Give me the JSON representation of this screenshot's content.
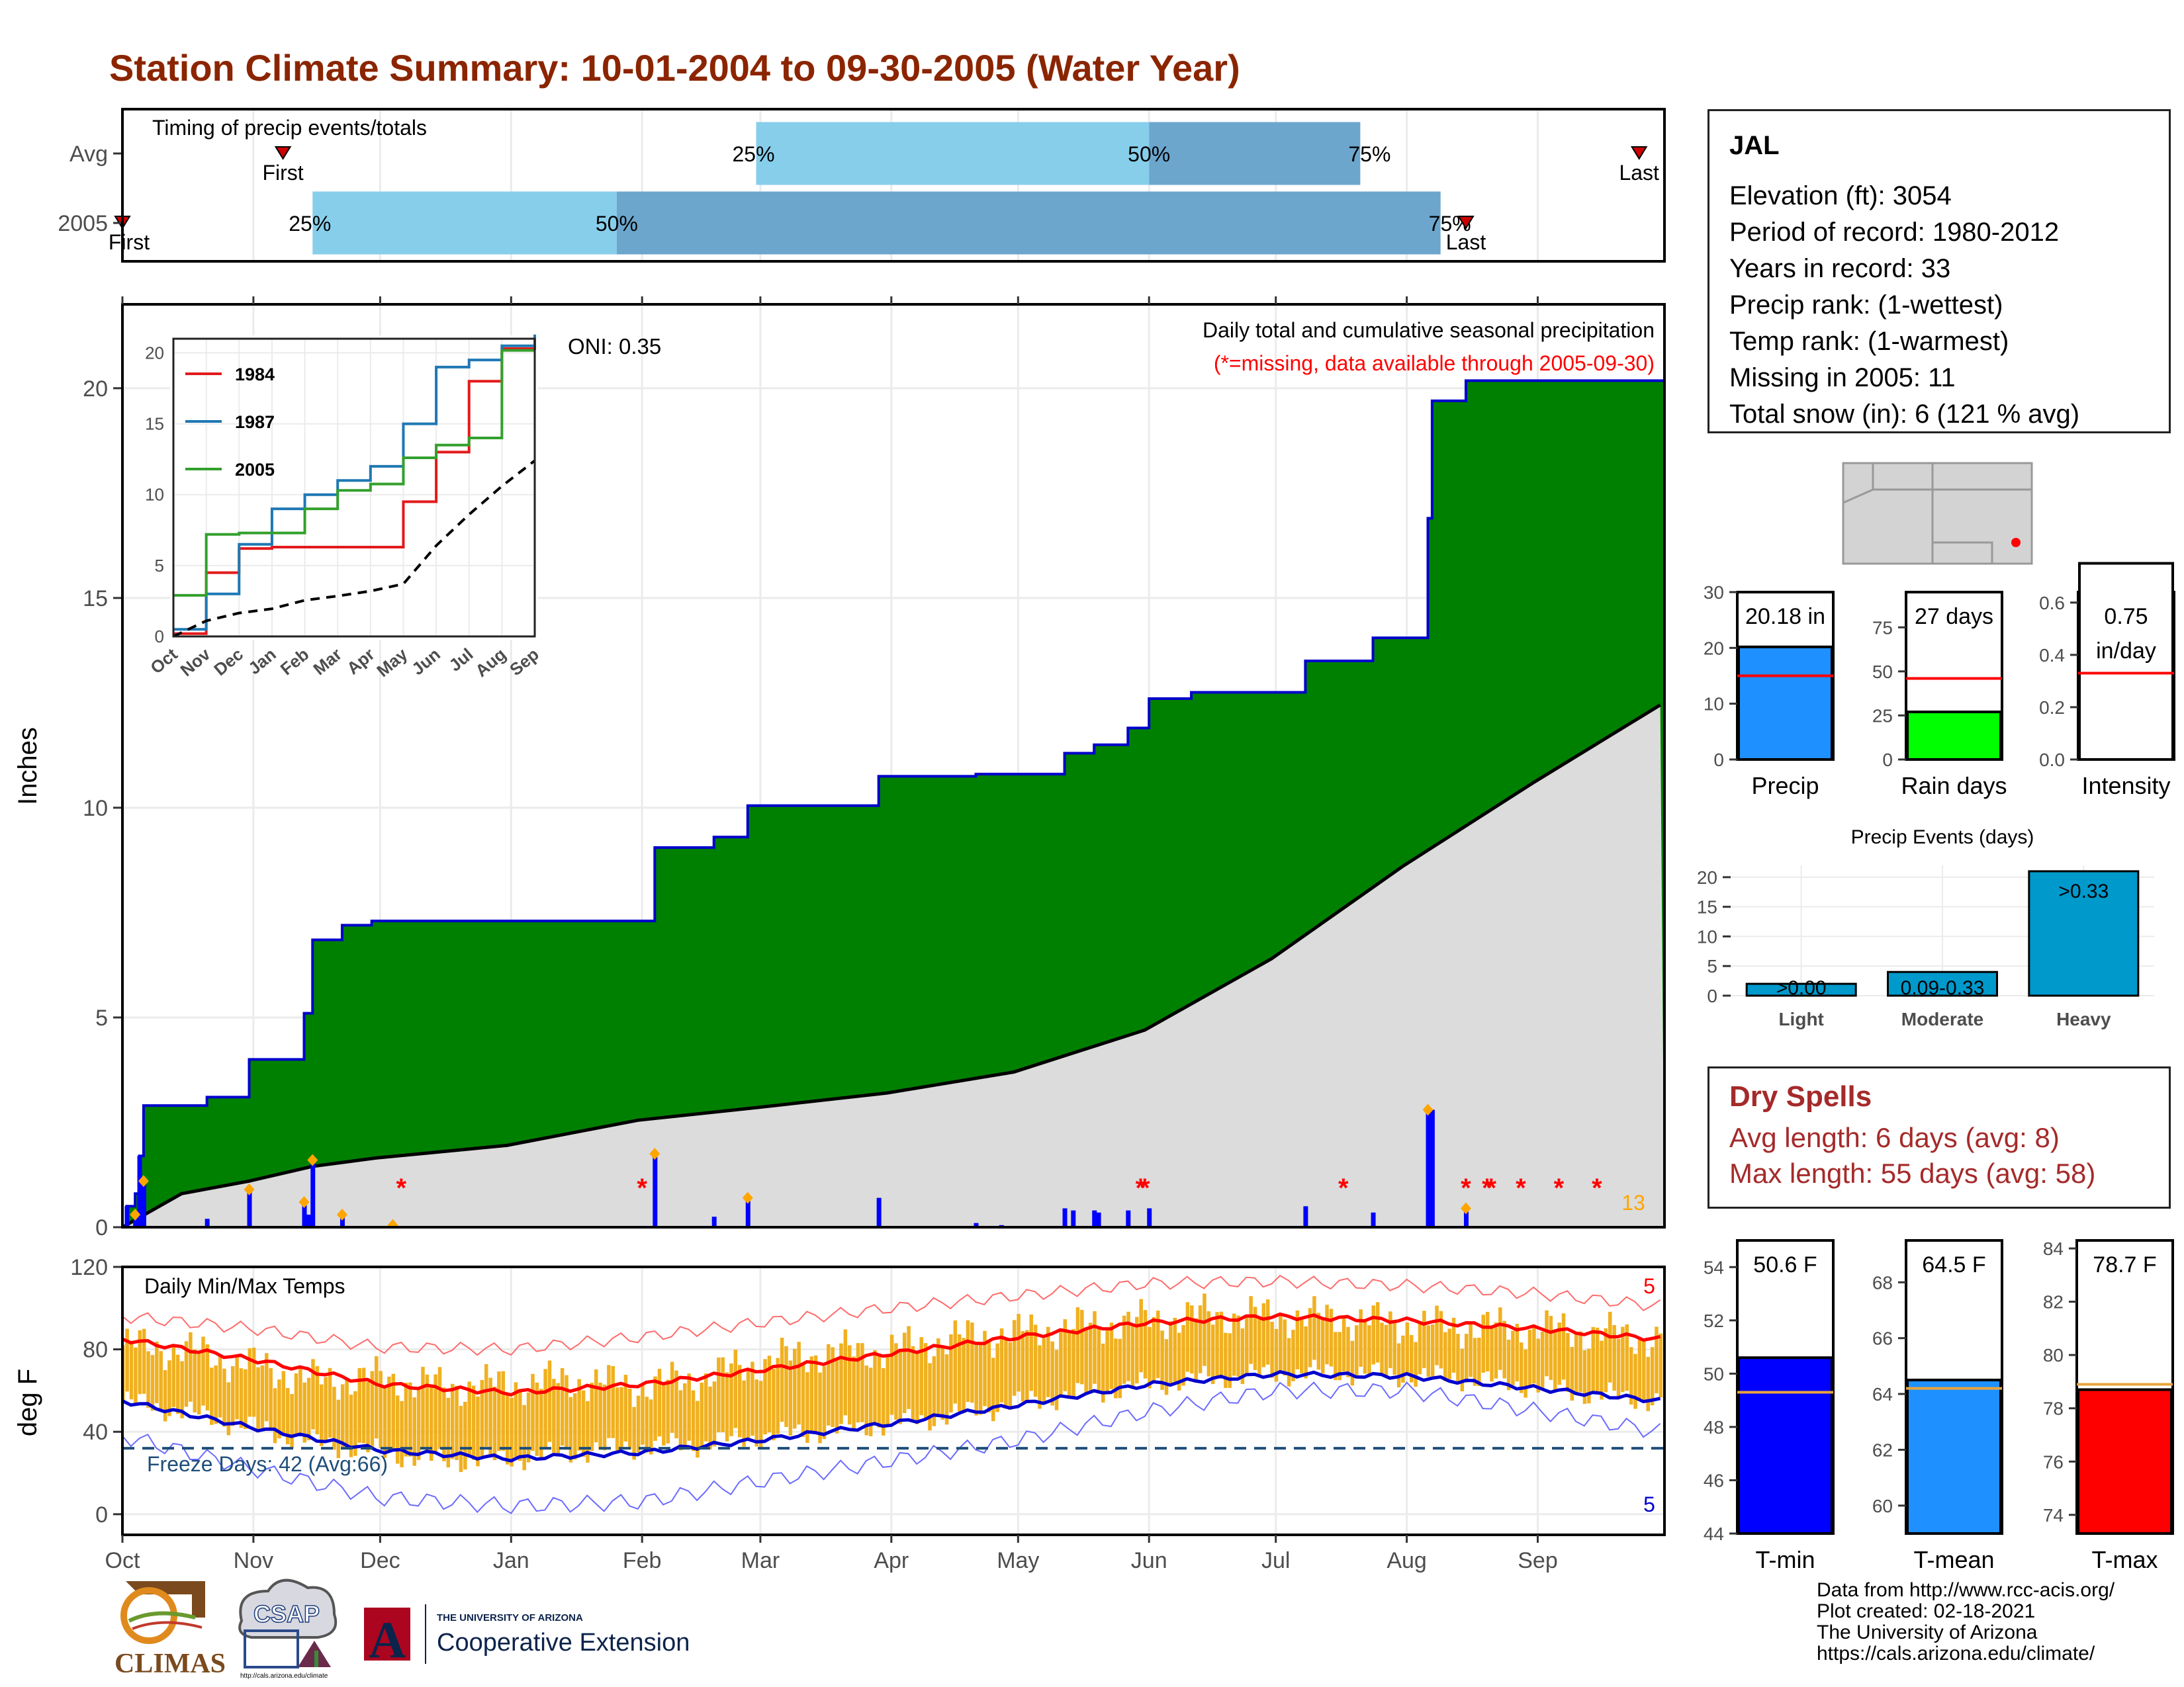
{
  "title": "Station Climate Summary: 10-01-2004 to 09-30-2005 (Water Year)",
  "station": {
    "name": "JAL",
    "rows": [
      "Elevation (ft): 3054",
      "Period of record: 1980-2012",
      "Years in record: 33",
      "Precip rank:  (1-wettest)",
      "Temp rank:  (1-warmest)",
      "Missing in 2005: 11",
      "Total snow (in): 6 (121 % avg)"
    ]
  },
  "dry_spells": {
    "header": "Dry Spells",
    "rows": [
      "Avg length: 6 days (avg: 8)",
      "Max length: 55 days (avg: 58)"
    ]
  },
  "credits": [
    "Data from http://www.rcc-acis.org/",
    "Plot created: 02-18-2021",
    "The University of Arizona",
    "https://cals.arizona.edu/climate/"
  ],
  "logos": {
    "climas": "CLIMAS",
    "csap": "CSAP",
    "csap_url": "http://cals.arizona.edu/climate",
    "ua_small": "THE UNIVERSITY OF ARIZONA",
    "ua_big": "Cooperative Extension",
    "ua_letter": "A"
  },
  "colors": {
    "title": "#8b2500",
    "cumulative_2005": "#008000",
    "cumulative_outline": "#0000cc",
    "average": "#dcdcdc",
    "daily_bar": "#0000ff",
    "timing_light": "#87ceeb",
    "timing_dark": "#6ca6cd",
    "temp_range": "#f0b020",
    "tmax": "#ff0000",
    "tmin": "#0000cd",
    "tmean_bar": "#1e90ff",
    "rain_days_bar": "#00ff00"
  },
  "months": [
    "Oct",
    "Nov",
    "Dec",
    "Jan",
    "Feb",
    "Mar",
    "Apr",
    "May",
    "Jun",
    "Jul",
    "Aug",
    "Sep"
  ],
  "chart_data": [
    {
      "type": "bar",
      "id": "timing",
      "title": "Timing of precip events/totals",
      "rows": [
        {
          "name": "Avg",
          "first_label": "First",
          "last_label": "Last",
          "first": "2004-11-08",
          "p25": "2005-02-28",
          "p50": "2005-06-01",
          "p75": "2005-07-21",
          "last": "2005-09-25"
        },
        {
          "name": "2005",
          "first_label": "First",
          "last_label": "Last",
          "first": "2004-10-01",
          "p25": "2004-11-15",
          "p50": "2005-01-26",
          "p75": "2005-08-09",
          "last": "2005-08-15"
        }
      ],
      "percent_labels": [
        "25%",
        "50%",
        "75%"
      ]
    },
    {
      "type": "area",
      "id": "precip",
      "ylabel": "Inches",
      "ylim": [
        0,
        22
      ],
      "yticks": [
        0,
        5,
        10,
        15,
        20
      ],
      "annotation_right": "Daily total and cumulative seasonal precipitation",
      "annotation_missing": "(*=missing, data available through 2005-09-30)",
      "oni": "ONI: 0.35",
      "count_label": "13",
      "cumulative_2005": [
        {
          "x": "2004-10-01",
          "y": 0.0
        },
        {
          "x": "2004-10-02",
          "y": 0.5
        },
        {
          "x": "2004-10-04",
          "y": 0.8
        },
        {
          "x": "2004-10-05",
          "y": 1.7
        },
        {
          "x": "2004-10-06",
          "y": 2.9
        },
        {
          "x": "2004-10-21",
          "y": 3.1
        },
        {
          "x": "2004-10-31",
          "y": 4.0
        },
        {
          "x": "2004-11-13",
          "y": 5.1
        },
        {
          "x": "2004-11-15",
          "y": 6.85
        },
        {
          "x": "2004-11-22",
          "y": 7.2
        },
        {
          "x": "2004-11-29",
          "y": 7.3
        },
        {
          "x": "2005-02-04",
          "y": 9.05
        },
        {
          "x": "2005-02-18",
          "y": 9.3
        },
        {
          "x": "2005-02-26",
          "y": 10.05
        },
        {
          "x": "2005-03-29",
          "y": 10.75
        },
        {
          "x": "2005-04-21",
          "y": 10.8
        },
        {
          "x": "2005-05-12",
          "y": 11.3
        },
        {
          "x": "2005-05-19",
          "y": 11.5
        },
        {
          "x": "2005-05-27",
          "y": 11.9
        },
        {
          "x": "2005-06-01",
          "y": 12.6
        },
        {
          "x": "2005-06-11",
          "y": 12.75
        },
        {
          "x": "2005-07-08",
          "y": 13.5
        },
        {
          "x": "2005-07-24",
          "y": 14.05
        },
        {
          "x": "2005-08-06",
          "y": 16.9
        },
        {
          "x": "2005-08-07",
          "y": 19.7
        },
        {
          "x": "2005-08-15",
          "y": 20.18
        },
        {
          "x": "2005-09-30",
          "y": 20.18
        }
      ],
      "average_cumulative": [
        {
          "x": "2004-10-01",
          "y": 0.0
        },
        {
          "x": "2004-10-15",
          "y": 0.8
        },
        {
          "x": "2004-10-31",
          "y": 1.1
        },
        {
          "x": "2004-11-15",
          "y": 1.45
        },
        {
          "x": "2004-11-30",
          "y": 1.65
        },
        {
          "x": "2004-12-31",
          "y": 1.95
        },
        {
          "x": "2005-01-31",
          "y": 2.55
        },
        {
          "x": "2005-02-28",
          "y": 2.85
        },
        {
          "x": "2005-03-31",
          "y": 3.2
        },
        {
          "x": "2005-04-30",
          "y": 3.7
        },
        {
          "x": "2005-05-31",
          "y": 4.7
        },
        {
          "x": "2005-06-30",
          "y": 6.4
        },
        {
          "x": "2005-07-31",
          "y": 8.6
        },
        {
          "x": "2005-08-31",
          "y": 10.6
        },
        {
          "x": "2005-09-30",
          "y": 12.45
        }
      ],
      "daily_bars": [
        {
          "x": "2004-10-02",
          "y": 0.5
        },
        {
          "x": "2004-10-04",
          "y": 0.3
        },
        {
          "x": "2004-10-05",
          "y": 1.7
        },
        {
          "x": "2004-10-06",
          "y": 1.1
        },
        {
          "x": "2004-10-21",
          "y": 0.2
        },
        {
          "x": "2004-10-31",
          "y": 0.9
        },
        {
          "x": "2004-11-13",
          "y": 0.6
        },
        {
          "x": "2004-11-14",
          "y": 0.3
        },
        {
          "x": "2004-11-15",
          "y": 1.6
        },
        {
          "x": "2004-11-22",
          "y": 0.3
        },
        {
          "x": "2005-02-04",
          "y": 1.75
        },
        {
          "x": "2005-02-18",
          "y": 0.25
        },
        {
          "x": "2005-02-26",
          "y": 0.7
        },
        {
          "x": "2005-03-29",
          "y": 0.7
        },
        {
          "x": "2005-04-21",
          "y": 0.1
        },
        {
          "x": "2005-04-27",
          "y": 0.05
        },
        {
          "x": "2005-05-12",
          "y": 0.45
        },
        {
          "x": "2005-05-14",
          "y": 0.4
        },
        {
          "x": "2005-05-19",
          "y": 0.4
        },
        {
          "x": "2005-05-20",
          "y": 0.35
        },
        {
          "x": "2005-05-27",
          "y": 0.4
        },
        {
          "x": "2005-06-01",
          "y": 0.45
        },
        {
          "x": "2005-07-08",
          "y": 0.5
        },
        {
          "x": "2005-07-24",
          "y": 0.35
        },
        {
          "x": "2005-08-06",
          "y": 2.8
        },
        {
          "x": "2005-08-07",
          "y": 2.8
        },
        {
          "x": "2005-08-15",
          "y": 0.45
        }
      ],
      "snow_days": [
        "2004-10-04",
        "2004-10-06",
        "2004-10-31",
        "2004-11-13",
        "2004-11-15",
        "2004-11-22",
        "2004-12-04",
        "2005-02-04",
        "2005-02-26",
        "2005-08-06",
        "2005-08-15"
      ],
      "missing_days": [
        "2004-12-06",
        "2005-02-01",
        "2005-05-30",
        "2005-05-31",
        "2005-07-17",
        "2005-08-15",
        "2005-08-20",
        "2005-08-21",
        "2005-08-28",
        "2005-09-06",
        "2005-09-15"
      ]
    },
    {
      "type": "line",
      "id": "inset_cumulative",
      "xlabels": [
        "Oct",
        "Nov",
        "Dec",
        "Jan",
        "Feb",
        "Mar",
        "Apr",
        "May",
        "Jun",
        "Jul",
        "Aug",
        "Sep"
      ],
      "ylim": [
        0,
        21
      ],
      "yticks": [
        0,
        5,
        10,
        15,
        20
      ],
      "series": [
        {
          "name": "1984",
          "values": [
            0.2,
            4.5,
            6.2,
            6.3,
            6.3,
            6.3,
            6.3,
            9.5,
            13.0,
            18.0,
            20.3,
            20.6
          ]
        },
        {
          "name": "1987",
          "values": [
            0.5,
            3.0,
            6.5,
            9.0,
            10.0,
            11.0,
            12.0,
            15.0,
            19.0,
            19.5,
            20.5,
            21.3
          ]
        },
        {
          "name": "2005",
          "values": [
            2.9,
            7.2,
            7.3,
            7.3,
            9.0,
            10.3,
            10.75,
            12.6,
            13.5,
            14.0,
            20.18,
            20.18
          ]
        },
        {
          "name": "",
          "values": [
            0,
            1.1,
            1.65,
            1.95,
            2.55,
            2.85,
            3.2,
            3.7,
            6.4,
            8.6,
            10.6,
            12.4
          ]
        }
      ]
    },
    {
      "type": "line",
      "id": "temps",
      "title": "Daily Min/Max Temps",
      "ylabel": "deg F",
      "ylim": [
        -10,
        120
      ],
      "yticks": [
        0,
        40,
        80,
        120
      ],
      "freeze_label": "Freeze Days: 42 (Avg:66)",
      "freeze_line": 32,
      "count_max": "5",
      "count_min": "5",
      "tmax_avg": [
        {
          "x": "2004-10-01",
          "y": 85
        },
        {
          "x": "2004-11-01",
          "y": 75
        },
        {
          "x": "2004-12-01",
          "y": 63
        },
        {
          "x": "2005-01-01",
          "y": 59
        },
        {
          "x": "2005-02-01",
          "y": 63
        },
        {
          "x": "2005-03-01",
          "y": 70
        },
        {
          "x": "2005-04-01",
          "y": 78
        },
        {
          "x": "2005-05-01",
          "y": 86
        },
        {
          "x": "2005-06-01",
          "y": 93
        },
        {
          "x": "2005-07-01",
          "y": 96
        },
        {
          "x": "2005-08-01",
          "y": 94
        },
        {
          "x": "2005-09-01",
          "y": 90
        },
        {
          "x": "2005-09-30",
          "y": 85
        }
      ],
      "tmin_avg": [
        {
          "x": "2004-10-01",
          "y": 55
        },
        {
          "x": "2004-11-01",
          "y": 42
        },
        {
          "x": "2004-12-01",
          "y": 31
        },
        {
          "x": "2005-01-01",
          "y": 27
        },
        {
          "x": "2005-02-01",
          "y": 30
        },
        {
          "x": "2005-03-01",
          "y": 36
        },
        {
          "x": "2005-04-01",
          "y": 44
        },
        {
          "x": "2005-05-01",
          "y": 53
        },
        {
          "x": "2005-06-01",
          "y": 63
        },
        {
          "x": "2005-07-01",
          "y": 68
        },
        {
          "x": "2005-08-01",
          "y": 67
        },
        {
          "x": "2005-09-01",
          "y": 61
        },
        {
          "x": "2005-09-30",
          "y": 55
        }
      ],
      "record_max": [
        {
          "x": "2004-10-01",
          "y": 96
        },
        {
          "x": "2004-11-01",
          "y": 90
        },
        {
          "x": "2004-12-01",
          "y": 81
        },
        {
          "x": "2005-01-01",
          "y": 80
        },
        {
          "x": "2005-02-01",
          "y": 86
        },
        {
          "x": "2005-03-01",
          "y": 93
        },
        {
          "x": "2005-04-01",
          "y": 100
        },
        {
          "x": "2005-05-01",
          "y": 106
        },
        {
          "x": "2005-06-01",
          "y": 112
        },
        {
          "x": "2005-07-01",
          "y": 113
        },
        {
          "x": "2005-08-01",
          "y": 111
        },
        {
          "x": "2005-09-01",
          "y": 107
        },
        {
          "x": "2005-09-30",
          "y": 101
        }
      ],
      "record_min": [
        {
          "x": "2004-10-01",
          "y": 38
        },
        {
          "x": "2004-11-01",
          "y": 22
        },
        {
          "x": "2004-12-01",
          "y": 8
        },
        {
          "x": "2005-01-01",
          "y": 4
        },
        {
          "x": "2005-02-01",
          "y": 6
        },
        {
          "x": "2005-03-01",
          "y": 16
        },
        {
          "x": "2005-04-01",
          "y": 26
        },
        {
          "x": "2005-05-01",
          "y": 36
        },
        {
          "x": "2005-06-01",
          "y": 50
        },
        {
          "x": "2005-07-01",
          "y": 60
        },
        {
          "x": "2005-08-01",
          "y": 60
        },
        {
          "x": "2005-09-01",
          "y": 50
        },
        {
          "x": "2005-09-30",
          "y": 40
        }
      ],
      "daily_range_2005": [
        {
          "x": "2004-10-01",
          "lo": 55,
          "hi": 82
        },
        {
          "x": "2004-10-15",
          "lo": 50,
          "hi": 80
        },
        {
          "x": "2004-11-01",
          "lo": 42,
          "hi": 72
        },
        {
          "x": "2004-11-15",
          "lo": 35,
          "hi": 65
        },
        {
          "x": "2004-12-01",
          "lo": 30,
          "hi": 66
        },
        {
          "x": "2004-12-15",
          "lo": 26,
          "hi": 62
        },
        {
          "x": "2005-01-01",
          "lo": 27,
          "hi": 63
        },
        {
          "x": "2005-01-15",
          "lo": 30,
          "hi": 65
        },
        {
          "x": "2005-02-01",
          "lo": 33,
          "hi": 62
        },
        {
          "x": "2005-02-15",
          "lo": 34,
          "hi": 66
        },
        {
          "x": "2005-03-01",
          "lo": 38,
          "hi": 74
        },
        {
          "x": "2005-03-15",
          "lo": 40,
          "hi": 78
        },
        {
          "x": "2005-04-01",
          "lo": 44,
          "hi": 80
        },
        {
          "x": "2005-04-15",
          "lo": 48,
          "hi": 85
        },
        {
          "x": "2005-05-01",
          "lo": 54,
          "hi": 88
        },
        {
          "x": "2005-05-15",
          "lo": 58,
          "hi": 91
        },
        {
          "x": "2005-06-01",
          "lo": 63,
          "hi": 94
        },
        {
          "x": "2005-06-15",
          "lo": 66,
          "hi": 97
        },
        {
          "x": "2005-07-01",
          "lo": 68,
          "hi": 96
        },
        {
          "x": "2005-07-15",
          "lo": 69,
          "hi": 95
        },
        {
          "x": "2005-08-01",
          "lo": 67,
          "hi": 92
        },
        {
          "x": "2005-08-15",
          "lo": 66,
          "hi": 91
        },
        {
          "x": "2005-09-01",
          "lo": 62,
          "hi": 90
        },
        {
          "x": "2005-09-15",
          "lo": 58,
          "hi": 88
        },
        {
          "x": "2005-09-30",
          "lo": 55,
          "hi": 85
        }
      ]
    },
    {
      "type": "bar",
      "id": "summary_precip",
      "panels": [
        {
          "label": "Precip",
          "value": 20.18,
          "value_label": "20.18 in",
          "avg": 15,
          "ylim": [
            0,
            30
          ],
          "yticks": [
            0,
            10,
            20,
            30
          ],
          "color": "#1e90ff"
        },
        {
          "label": "Rain days",
          "value": 27,
          "value_label": "27 days",
          "avg": 46,
          "ylim": [
            0,
            95
          ],
          "yticks": [
            0,
            25,
            50,
            75
          ],
          "color": "#00ff00"
        },
        {
          "label": "Intensity",
          "value": 0.75,
          "value_label": "0.75",
          "value_label2": "in/day",
          "avg": 0.33,
          "ylim": [
            0,
            0.64
          ],
          "yticks": [
            0.0,
            0.2,
            0.4,
            0.6
          ],
          "color": "#ffffff",
          "decimals": 1
        }
      ]
    },
    {
      "type": "bar",
      "id": "precip_events",
      "title": "Precip Events (days)",
      "categories": [
        "Light",
        "Moderate",
        "Heavy"
      ],
      "values": [
        2,
        4,
        21
      ],
      "bar_labels": [
        ">0.00",
        "0.09-0.33",
        ">0.33"
      ],
      "ylim": [
        0,
        22
      ],
      "yticks": [
        0,
        5,
        10,
        15,
        20
      ]
    },
    {
      "type": "bar",
      "id": "summary_temp",
      "panels": [
        {
          "label": "T-min",
          "value": 50.6,
          "value_label": "50.6 F",
          "avg": 49.3,
          "ylim": [
            44,
            55
          ],
          "yticks": [
            44,
            46,
            48,
            50,
            52,
            54
          ],
          "color": "#0000ff"
        },
        {
          "label": "T-mean",
          "value": 64.5,
          "value_label": "64.5 F",
          "avg": 64.2,
          "ylim": [
            59,
            69.5
          ],
          "yticks": [
            60,
            62,
            64,
            66,
            68
          ],
          "color": "#1e90ff"
        },
        {
          "label": "T-max",
          "value": 78.7,
          "value_label": "78.7 F",
          "avg": 78.9,
          "ylim": [
            73.3,
            84.3
          ],
          "yticks": [
            74,
            76,
            78,
            80,
            82,
            84
          ],
          "color": "#ff0000"
        }
      ]
    }
  ]
}
